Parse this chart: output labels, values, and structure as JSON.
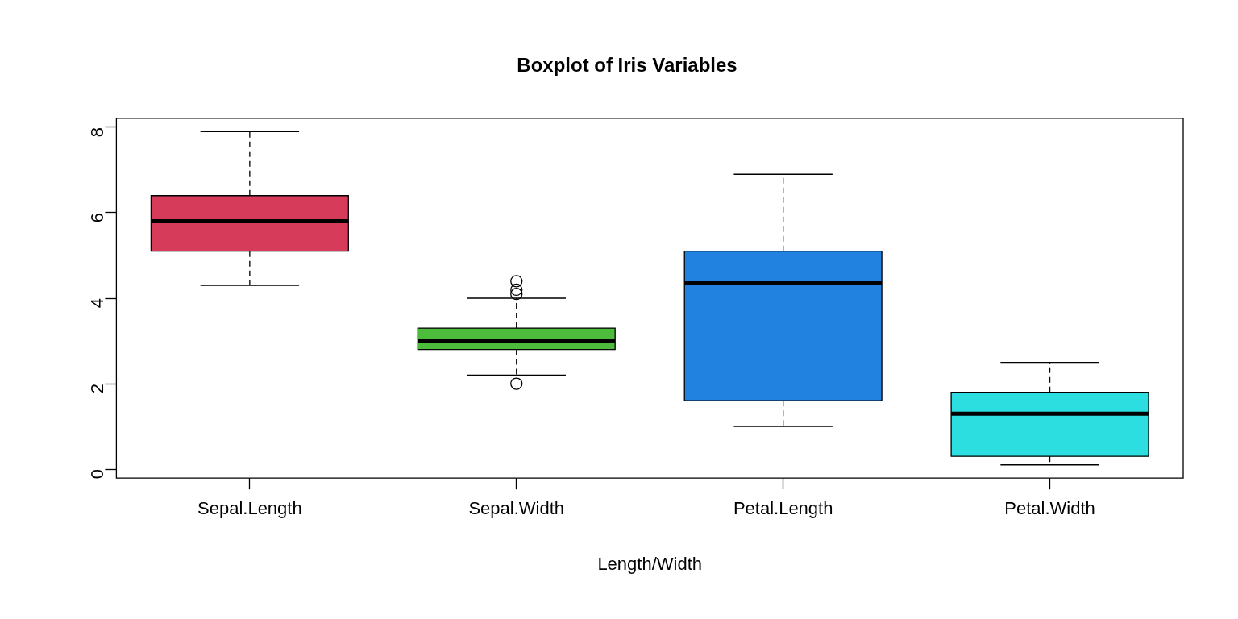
{
  "chart_data": {
    "type": "box",
    "title": "Boxplot of Iris Variables",
    "xlabel": "Length/Width",
    "categories": [
      "Sepal.Length",
      "Sepal.Width",
      "Petal.Length",
      "Petal.Width"
    ],
    "colors": [
      "#d73b5a",
      "#4dbb3b",
      "#2182e0",
      "#2cdee0"
    ],
    "boxes": [
      {
        "low": 4.3,
        "q1": 5.1,
        "median": 5.8,
        "q3": 6.4,
        "high": 7.9
      },
      {
        "low": 2.2,
        "q1": 2.8,
        "median": 3.0,
        "q3": 3.3,
        "high": 4.0,
        "outliers": [
          4.4,
          4.1,
          4.2,
          2.0
        ]
      },
      {
        "low": 1.0,
        "q1": 1.6,
        "median": 4.35,
        "q3": 5.1,
        "high": 6.9
      },
      {
        "low": 0.1,
        "q1": 0.3,
        "median": 1.3,
        "q3": 1.8,
        "high": 2.5
      }
    ],
    "ylim": [
      -0.21,
      8.21
    ],
    "yticks": [
      0,
      2,
      4,
      6,
      8
    ],
    "grid": false,
    "legend": false
  }
}
